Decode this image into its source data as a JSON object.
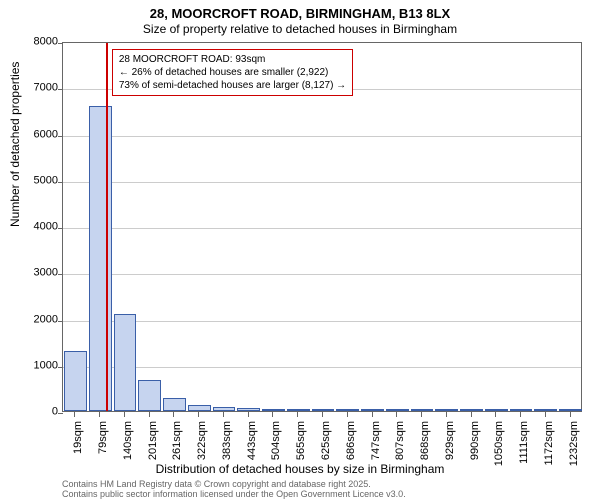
{
  "chart": {
    "type": "bar",
    "title_line1": "28, MOORCROFT ROAD, BIRMINGHAM, B13 8LX",
    "title_line2": "Size of property relative to detached houses in Birmingham",
    "title_fontsize": 13,
    "subtitle_fontsize": 12,
    "xlabel": "Distribution of detached houses by size in Birmingham",
    "ylabel": "Number of detached properties",
    "label_fontsize": 12,
    "tick_fontsize": 11,
    "background_color": "#ffffff",
    "grid_color": "#cccccc",
    "axis_color": "#666666",
    "bar_fill": "#c6d4ef",
    "bar_border": "#3a5fa8",
    "marker_color": "#cc0000",
    "annotation_border": "#cc0000",
    "ylim": [
      0,
      8000
    ],
    "yticks": [
      0,
      1000,
      2000,
      3000,
      4000,
      5000,
      6000,
      7000,
      8000
    ],
    "xtick_labels": [
      "19sqm",
      "79sqm",
      "140sqm",
      "201sqm",
      "261sqm",
      "322sqm",
      "383sqm",
      "443sqm",
      "504sqm",
      "565sqm",
      "625sqm",
      "686sqm",
      "747sqm",
      "807sqm",
      "868sqm",
      "929sqm",
      "990sqm",
      "1050sqm",
      "1111sqm",
      "1172sqm",
      "1232sqm"
    ],
    "bar_values": [
      1300,
      6600,
      2100,
      680,
      280,
      130,
      80,
      55,
      50,
      45,
      30,
      15,
      12,
      10,
      8,
      8,
      5,
      5,
      3,
      3,
      2
    ],
    "bar_width_ratio": 0.92,
    "marker_x_index": 1.23,
    "annotation": {
      "line1": "28 MOORCROFT ROAD: 93sqm",
      "line2": "← 26% of detached houses are smaller (2,922)",
      "line3": "73% of semi-detached houses are larger (8,127) →"
    },
    "footer_line1": "Contains HM Land Registry data © Crown copyright and database right 2025.",
    "footer_line2": "Contains public sector information licensed under the Open Government Licence v3.0."
  }
}
